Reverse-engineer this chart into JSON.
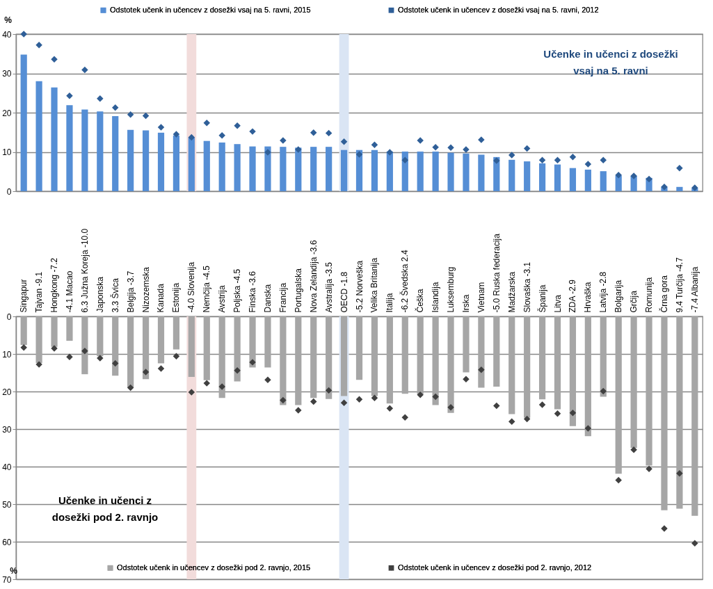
{
  "chart_data": [
    {
      "type": "bar",
      "categories": [
        "Singapur",
        "Tajvan -9.1",
        "Hongkong -7.2",
        "-4.1 Macao",
        "6.3 Južna Koreja -10.0",
        "Japonska",
        "3.3 Švica",
        "Belgija -3.7",
        "Nizozemska",
        "Kanada",
        "Estonija",
        "-4.0 Slovenija",
        "Nemčija -4.5",
        "Avstrija",
        "Poljska -4.5",
        "Finska -3.6",
        "Danska",
        "Francija",
        "Portugalska",
        "Nova Zelandija -3.6",
        "Avstralija -3.5",
        "OECD -1.8",
        "-5.2 Norveška",
        "Velika Britanija",
        "Italija",
        "-6.2 Švedska 2.4",
        "Češka",
        "Islandija",
        "Luksemburg",
        "Irska",
        "Vietnam",
        "-5.0 Ruska federacija",
        "Madžarska",
        "Slovaška -3.1",
        "Španija",
        "Litva",
        "ZDA -2.9",
        "Hrvaška",
        "Latvija -2.8",
        "Bolgarija",
        "Grčija",
        "Romunija",
        "Črna gora",
        "9.4 Turčija -4.7",
        "-7.4 Albanija"
      ],
      "series": [
        {
          "name": "Odstotek učenk in učencev z dosežki vsaj na 5. ravni, 2015",
          "color": "#558ed5",
          "values": [
            34.8,
            28.0,
            26.4,
            21.9,
            20.8,
            20.3,
            19.1,
            15.6,
            15.5,
            14.9,
            14.2,
            13.7,
            12.8,
            12.4,
            12.0,
            11.4,
            11.4,
            11.3,
            11.1,
            11.3,
            11.3,
            10.5,
            10.5,
            10.5,
            10.1,
            10.1,
            10.1,
            10.1,
            9.8,
            9.6,
            9.3,
            8.7,
            8.0,
            7.6,
            7.1,
            6.8,
            5.9,
            5.5,
            5.1,
            4.0,
            3.9,
            3.4,
            1.1,
            1.1,
            0.8
          ]
        },
        {
          "name": "Odstotek učenk in učencev z dosežki vsaj na 5. ravni, 2012",
          "color": "#2f5f98",
          "type": "scatter",
          "values": [
            40.0,
            37.2,
            33.6,
            24.3,
            30.9,
            23.6,
            21.3,
            19.5,
            19.2,
            16.3,
            14.5,
            13.7,
            17.4,
            14.2,
            16.7,
            15.2,
            9.9,
            12.9,
            10.6,
            14.9,
            14.8,
            12.6,
            9.4,
            11.8,
            9.9,
            7.9,
            12.9,
            11.2,
            11.1,
            10.6,
            13.1,
            7.8,
            9.2,
            10.9,
            7.9,
            7.9,
            8.7,
            6.9,
            7.9,
            4.1,
            3.9,
            3.1,
            1.1,
            5.9,
            0.9
          ]
        }
      ],
      "ylim": [
        0,
        40
      ],
      "yticks": [
        0,
        10,
        20,
        30,
        40
      ],
      "ylabel": "%",
      "grid": "y",
      "legend": "top",
      "marker": "diamond",
      "tick_labels": "y",
      "annotations": [
        "Učenke in učenci z dosežki vsaj na 5. ravni"
      ],
      "bands": [
        {
          "axis": "x",
          "from": "-4.0 Slovenija",
          "to": "-4.0 Slovenija",
          "color": "#f2dcdb"
        },
        {
          "axis": "x",
          "from": "OECD -1.8",
          "to": "OECD -1.8",
          "color": "#dae5f4"
        }
      ]
    },
    {
      "type": "bar",
      "categories": [
        "Singapur",
        "Tajvan -9.1",
        "Hongkong -7.2",
        "-4.1 Macao",
        "6.3 Južna Koreja -10.0",
        "Japonska",
        "3.3 Švica",
        "Belgija -3.7",
        "Nizozemska",
        "Kanada",
        "Estonija",
        "-4.0 Slovenija",
        "Nemčija -4.5",
        "Avstrija",
        "Poljska -4.5",
        "Finska -3.6",
        "Danska",
        "Francija",
        "Portugalska",
        "Nova Zelandija -3.6",
        "Avstralija -3.5",
        "OECD -1.8",
        "-5.2 Norveška",
        "Velika Britanija",
        "Italija",
        "-6.2 Švedska 2.4",
        "Češka",
        "Islandija",
        "Luksemburg",
        "Irska",
        "Vietnam",
        "-5.0 Ruska federacija",
        "Madžarska",
        "Slovaška -3.1",
        "Španija",
        "Litva",
        "ZDA -2.9",
        "Hrvaška",
        "Latvija -2.8",
        "Bolgarija",
        "Grčija",
        "Romunija",
        "Črna gora",
        "9.4 Turčija -4.7",
        "-7.4 Albanija"
      ],
      "series": [
        {
          "name": "Odstotek učenk in učencev z dosežki pod 2. ravnjo, 2015",
          "color": "#a6a6a6",
          "values": [
            7.6,
            12.4,
            8.1,
            6.5,
            15.4,
            10.6,
            15.8,
            18.9,
            16.7,
            12.5,
            8.8,
            16.1,
            17.0,
            21.7,
            17.3,
            13.6,
            13.6,
            23.6,
            23.6,
            21.7,
            22.0,
            21.2,
            16.9,
            21.2,
            23.2,
            20.6,
            20.7,
            23.6,
            25.7,
            14.9,
            19.0,
            18.7,
            26.0,
            27.0,
            22.1,
            24.7,
            29.2,
            31.9,
            21.4,
            41.9,
            35.0,
            39.7,
            51.6,
            51.2,
            53.1
          ]
        },
        {
          "name": "Odstotek učenk in učencev z dosežki pod 2. ravnjo, 2012",
          "color": "#404040",
          "type": "scatter",
          "values": [
            8.3,
            12.8,
            8.5,
            10.8,
            9.2,
            11.1,
            12.5,
            19.0,
            14.8,
            13.9,
            10.6,
            20.2,
            17.8,
            18.7,
            14.4,
            12.2,
            16.9,
            22.3,
            25.0,
            22.7,
            19.7,
            23.0,
            22.1,
            21.7,
            24.5,
            26.9,
            20.9,
            21.4,
            24.2,
            16.7,
            14.2,
            23.8,
            28.0,
            27.3,
            23.5,
            25.9,
            25.7,
            29.8,
            19.9,
            43.6,
            35.5,
            40.6,
            56.5,
            41.8,
            60.4
          ]
        }
      ],
      "ylim": [
        70,
        0
      ],
      "yticks": [
        0,
        10,
        20,
        30,
        40,
        50,
        60,
        70
      ],
      "ylabel": "%",
      "grid": "y",
      "legend": "bottom",
      "marker": "diamond",
      "annotations": [
        "Učenke in učenci z dosežki pod 2. ravnjo"
      ],
      "bands": [
        {
          "axis": "x",
          "from": "-4.0 Slovenija",
          "to": "-4.0 Slovenija",
          "color": "#f2dcdb"
        },
        {
          "axis": "x",
          "from": "OECD -1.8",
          "to": "OECD -1.8",
          "color": "#dae5f4"
        }
      ]
    }
  ]
}
